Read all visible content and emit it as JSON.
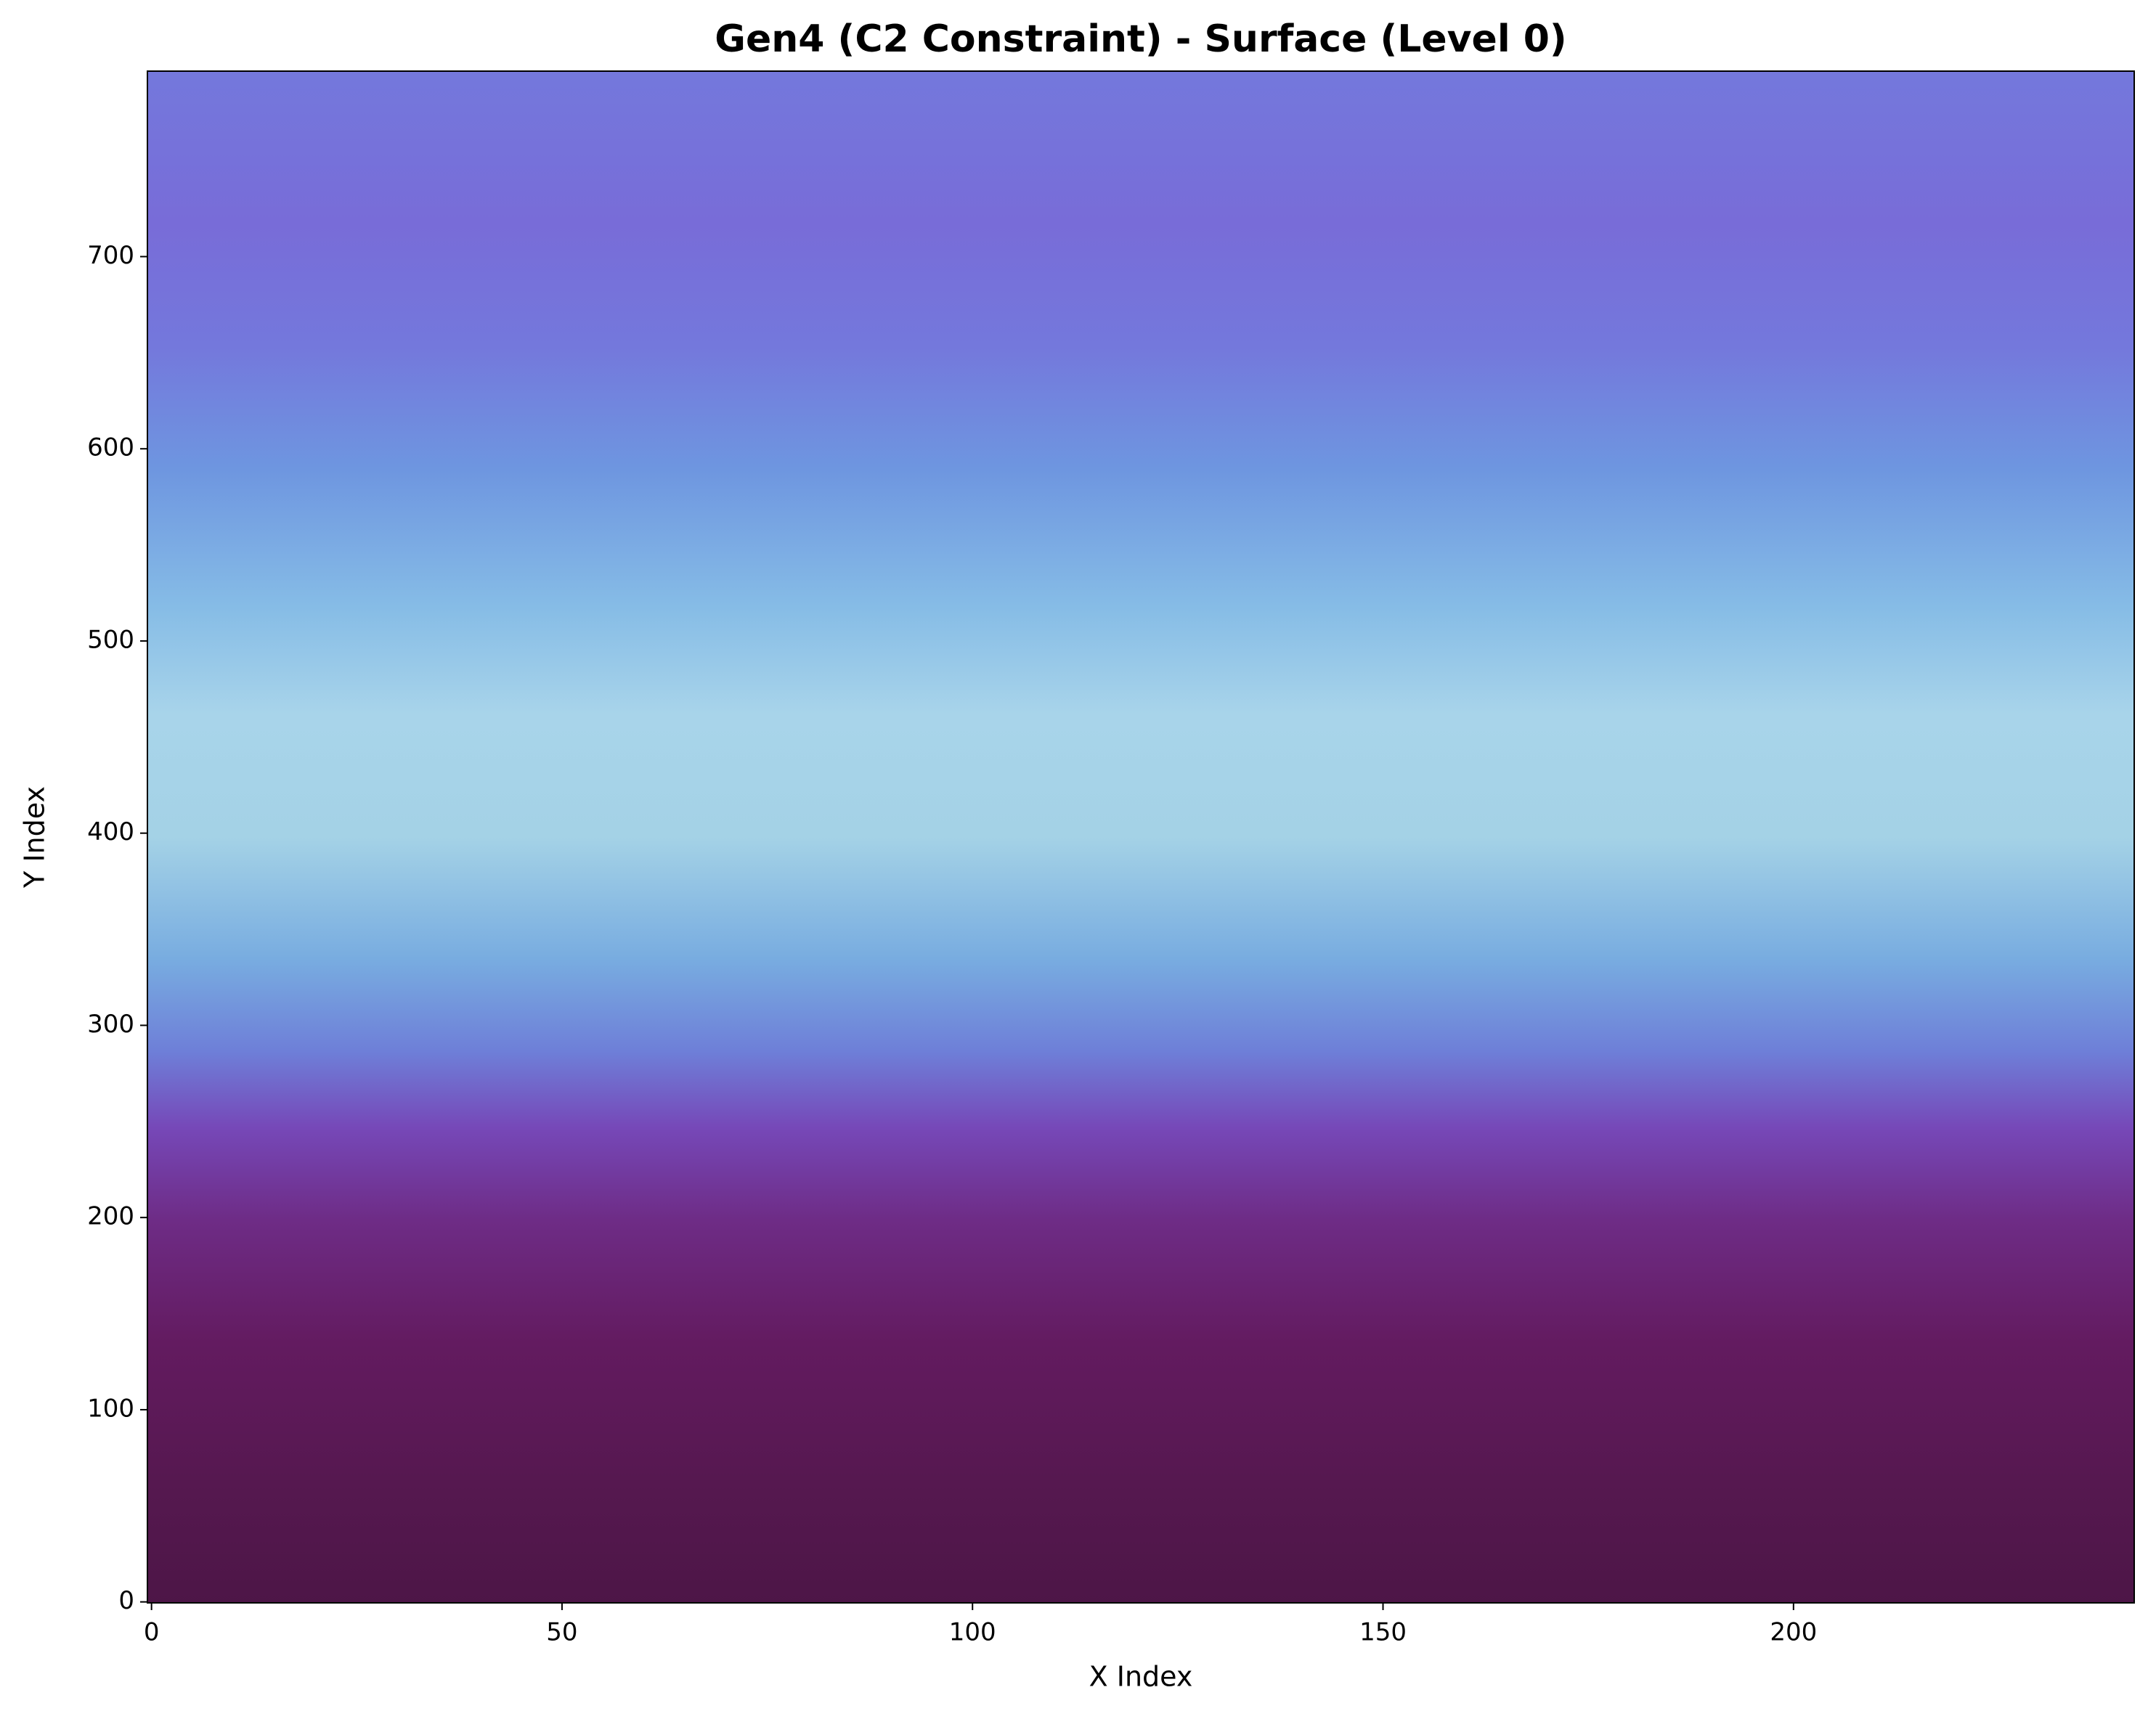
{
  "chart_data": {
    "type": "heatmap",
    "title": "Gen4 (C2 Constraint) - Surface (Level 0)",
    "xlabel": "X Index",
    "ylabel": "Y Index",
    "xlim": [
      -0.5,
      241.5
    ],
    "ylim": [
      -0.5,
      796.5
    ],
    "xticks": [
      0,
      50,
      100,
      150,
      200
    ],
    "yticks": [
      0,
      100,
      200,
      300,
      400,
      500,
      600,
      700
    ]
  }
}
